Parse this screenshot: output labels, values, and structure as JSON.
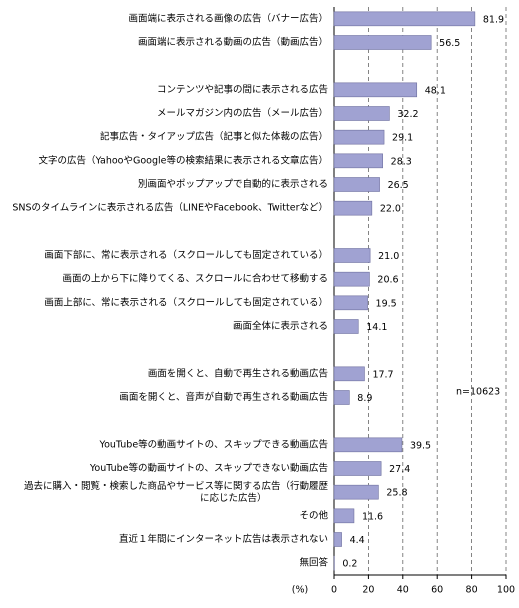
{
  "chart_data": {
    "type": "barh",
    "categories": [
      "画面端に表示される画像の広告（バナー広告）",
      "画面端に表示される動画の広告（動画広告）",
      null,
      "コンテンツや記事の間に表示される広告",
      "メールマガジン内の広告（メール広告）",
      "記事広告・タイアップ広告（記事と似た体裁の広告）",
      "文字の広告（YahooやGoogle等の検索結果に表示される文章広告）",
      "別画面やポップアップで自動的に表示される",
      "SNSのタイムラインに表示される広告（LINEやFacebook、Twitterなど）",
      null,
      "画面下部に、常に表示される（スクロールしても固定されている）",
      "画面の上から下に降りてくる、スクロールに合わせて移動する",
      "画面上部に、常に表示される（スクロールしても固定されている）",
      "画面全体に表示される",
      null,
      "画面を開くと、自動で再生される動画広告",
      "画面を開くと、音声が自動で再生される動画広告",
      null,
      "YouTube等の動画サイトの、スキップできる動画広告",
      "YouTube等の動画サイトの、スキップできない動画広告",
      "過去に購入・閲覧・検索した商品やサービス等に関する広告（行動履歴\nに応じた広告）",
      "その他",
      "直近１年間にインターネット広告は表示されない",
      "無回答"
    ],
    "values": [
      81.9,
      56.5,
      null,
      48.1,
      32.2,
      29.1,
      28.3,
      26.5,
      22.0,
      null,
      21.0,
      20.6,
      19.5,
      14.1,
      null,
      17.7,
      8.9,
      null,
      39.5,
      27.4,
      25.8,
      11.6,
      4.4,
      0.2
    ],
    "value_labels": [
      "81.9",
      "56.5",
      null,
      "48.1",
      "32.2",
      "29.1",
      "28.3",
      "26.5",
      "22.0",
      null,
      "21.0",
      "20.6",
      "19.5",
      "14.1",
      null,
      "17.7",
      "8.9",
      null,
      "39.5",
      "27.4",
      "25.8",
      "11.6",
      "4.4",
      "0.2"
    ],
    "color": "#a0a2d2",
    "xlim": [
      0,
      100
    ],
    "xticks": [
      0,
      20,
      40,
      60,
      80,
      100
    ],
    "grid": true,
    "xlabel": "(%)",
    "annotation": "n=10623"
  }
}
